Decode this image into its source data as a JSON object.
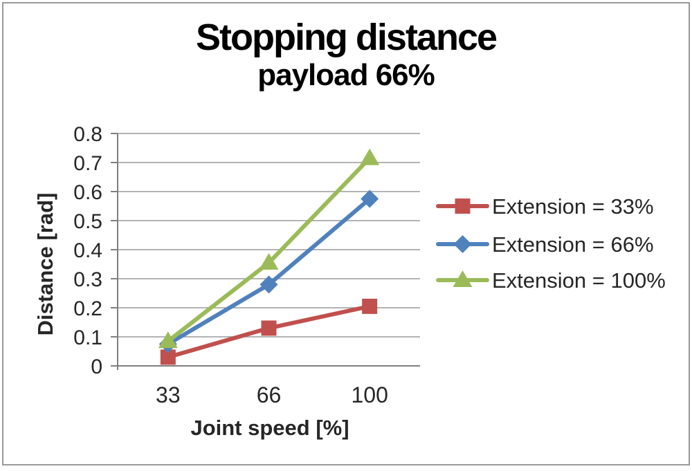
{
  "figure": {
    "background": "#ffffff",
    "border_color": "#999999"
  },
  "chart_data": {
    "type": "line",
    "title": "Stopping distance",
    "subtitle": "payload 66%",
    "xlabel": "Joint speed [%]",
    "ylabel": "Distance [rad]",
    "categories": [
      "33",
      "66",
      "100"
    ],
    "ylim": [
      0,
      0.8
    ],
    "ytick_step": 0.1,
    "ytick_labels": [
      "0",
      "0.1",
      "0.2",
      "0.3",
      "0.4",
      "0.5",
      "0.6",
      "0.7",
      "0.8"
    ],
    "grid": true,
    "legend_position": "right",
    "series": [
      {
        "name": "Extension = 33%",
        "values": [
          0.03,
          0.13,
          0.205
        ],
        "color": "#c0504d",
        "marker": "square"
      },
      {
        "name": "Extension = 66%",
        "values": [
          0.075,
          0.28,
          0.575
        ],
        "color": "#4f81bd",
        "marker": "diamond"
      },
      {
        "name": "Extension = 100%",
        "values": [
          0.085,
          0.355,
          0.715
        ],
        "color": "#9bbb59",
        "marker": "triangle"
      }
    ],
    "colors": {
      "gridline": "#9a9a9a",
      "axis": "#7f7f7f",
      "tick_text": "#262626",
      "legend_text": "#262626",
      "title_text": "#000000"
    }
  }
}
